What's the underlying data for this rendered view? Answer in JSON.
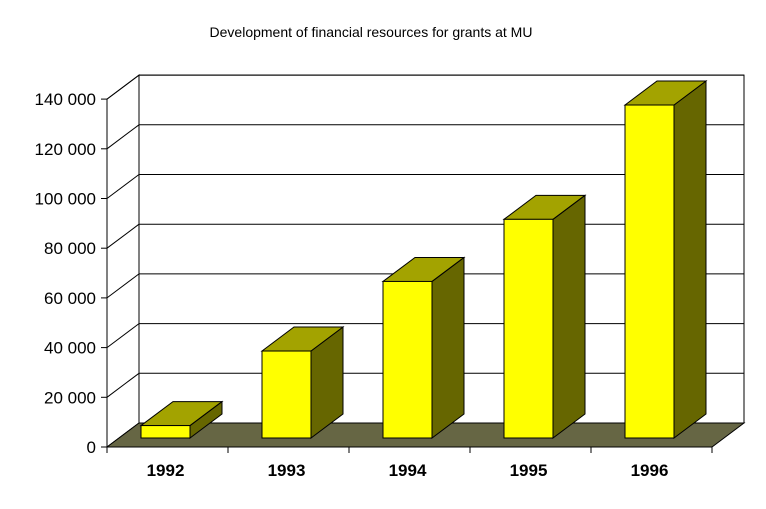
{
  "chart_data": {
    "type": "bar",
    "title": "Development of financial resources for grants at MU",
    "xlabel": "",
    "ylabel": "",
    "categories": [
      "1992",
      "1993",
      "1994",
      "1995",
      "1996"
    ],
    "values": [
      5000,
      35000,
      63000,
      88000,
      134000
    ],
    "ylim": [
      0,
      140000
    ],
    "yticks": [
      "0",
      "20 000",
      "40 000",
      "60 000",
      "80 000",
      "100 000",
      "120 000",
      "140 000"
    ],
    "grid": true,
    "legend": "none",
    "style": "3d",
    "colors": {
      "bar_front": "#ffff00",
      "bar_top": "#a3a300",
      "bar_side": "#666600",
      "floor": "#666644",
      "grid": "#000000"
    }
  }
}
